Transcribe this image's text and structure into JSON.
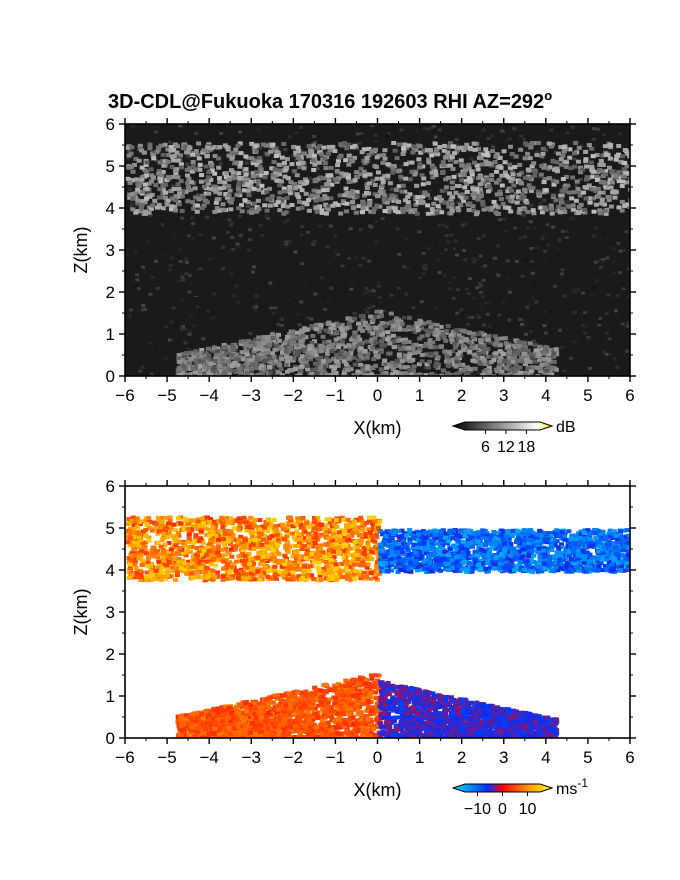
{
  "title": "3D-CDL@Fukuoka 170316 192603 RHI AZ=292",
  "title_superscript": "o",
  "chart_data": [
    {
      "type": "heatmap",
      "panel": "reflectivity",
      "xlabel": "X(km)",
      "ylabel": "Z(km)",
      "xlim": [
        -6,
        6
      ],
      "ylim": [
        0,
        6
      ],
      "x_ticks": [
        "-6",
        "-5",
        "-4",
        "-3",
        "-2",
        "-1",
        "0",
        "1",
        "2",
        "3",
        "4",
        "5",
        "6"
      ],
      "y_ticks": [
        "0",
        "1",
        "2",
        "3",
        "4",
        "5",
        "6"
      ],
      "colorbar": {
        "unit": "dB",
        "ticks": [
          "6",
          "12",
          "18"
        ],
        "tick_values": [
          6,
          12,
          18
        ],
        "range": [
          0,
          22
        ],
        "colors": [
          "#000000",
          "#ffffff",
          "#f0e020"
        ]
      },
      "layers": [
        {
          "name": "upper cloud layer",
          "x_range": [
            -6,
            6
          ],
          "z_range": [
            3.9,
            5.6
          ],
          "level_db": 12
        },
        {
          "name": "near-ground echo",
          "x_range": [
            -4.8,
            4.2
          ],
          "z_range": [
            0,
            1.6
          ],
          "level_db": 10
        }
      ]
    },
    {
      "type": "heatmap",
      "panel": "doppler velocity",
      "xlabel": "X(km)",
      "ylabel": "Z(km)",
      "xlim": [
        -6,
        6
      ],
      "ylim": [
        0,
        6
      ],
      "x_ticks": [
        "-6",
        "-5",
        "-4",
        "-3",
        "-2",
        "-1",
        "0",
        "1",
        "2",
        "3",
        "4",
        "5",
        "6"
      ],
      "y_ticks": [
        "0",
        "1",
        "2",
        "3",
        "4",
        "5",
        "6"
      ],
      "colorbar": {
        "unit": "ms",
        "unit_superscript": "-1",
        "ticks": [
          "−10",
          "0",
          "10"
        ],
        "tick_values": [
          -10,
          0,
          10
        ],
        "range": [
          -15,
          15
        ],
        "colors": [
          "#00e0f0",
          "#0030ff",
          "#ff0000",
          "#ff9000",
          "#ffff00"
        ]
      },
      "layers": [
        {
          "name": "upper layer, receding side",
          "x_range": [
            -6,
            0
          ],
          "z_range": [
            3.8,
            5.3
          ],
          "velocity_range": [
            2,
            12
          ]
        },
        {
          "name": "upper layer, approaching side",
          "x_range": [
            0,
            6
          ],
          "z_range": [
            4.0,
            5.0
          ],
          "velocity_range": [
            -12,
            -4
          ]
        },
        {
          "name": "lower layer, receding side",
          "x_range": [
            -4.8,
            0
          ],
          "z_range": [
            0,
            1.6
          ],
          "velocity_range": [
            2,
            6
          ]
        },
        {
          "name": "lower layer, approaching side",
          "x_range": [
            0,
            4.2
          ],
          "z_range": [
            0,
            1.4
          ],
          "velocity_range": [
            -6,
            -2
          ]
        }
      ]
    }
  ]
}
